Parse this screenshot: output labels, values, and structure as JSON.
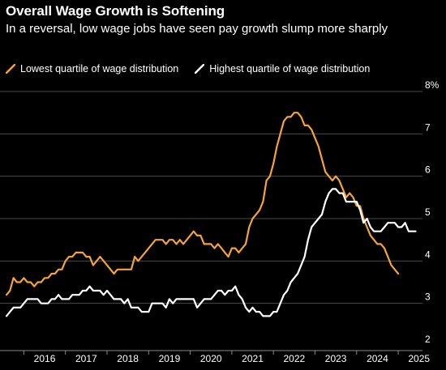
{
  "title": "Overall Wage Growth is Softening",
  "subtitle": "In a reversal, low wage jobs have seen pay growth slump more sharply",
  "chart_data": {
    "type": "line",
    "title": "Overall Wage Growth is Softening",
    "subtitle": "In a reversal, low wage jobs have seen pay growth slump more sharply",
    "xlabel": "",
    "ylabel": "",
    "y_unit": "%",
    "xlim": [
      "2015-08",
      "2025-08"
    ],
    "ylim": [
      2,
      8
    ],
    "y_ticks": [
      2,
      3,
      4,
      5,
      6,
      7,
      8
    ],
    "y_tick_labels": [
      "2",
      "3",
      "4",
      "5",
      "6",
      "7",
      "8%"
    ],
    "x_ticks": [
      "2016",
      "2017",
      "2018",
      "2019",
      "2020",
      "2021",
      "2022",
      "2023",
      "2024",
      "2025"
    ],
    "grid": true,
    "legend_position": "top-left",
    "series": [
      {
        "name": "Lowest quartile of wage distribution",
        "color": "#f5a33a",
        "points": [
          [
            "2015-08",
            3.2
          ],
          [
            "2015-09",
            3.3
          ],
          [
            "2015-10",
            3.6
          ],
          [
            "2015-11",
            3.5
          ],
          [
            "2015-12",
            3.5
          ],
          [
            "2016-01",
            3.6
          ],
          [
            "2016-02",
            3.5
          ],
          [
            "2016-03",
            3.5
          ],
          [
            "2016-04",
            3.4
          ],
          [
            "2016-05",
            3.5
          ],
          [
            "2016-06",
            3.5
          ],
          [
            "2016-07",
            3.6
          ],
          [
            "2016-08",
            3.6
          ],
          [
            "2016-09",
            3.7
          ],
          [
            "2016-10",
            3.7
          ],
          [
            "2016-11",
            3.8
          ],
          [
            "2016-12",
            3.8
          ],
          [
            "2017-01",
            4.0
          ],
          [
            "2017-02",
            4.1
          ],
          [
            "2017-03",
            4.1
          ],
          [
            "2017-04",
            4.2
          ],
          [
            "2017-05",
            4.2
          ],
          [
            "2017-06",
            4.2
          ],
          [
            "2017-07",
            4.1
          ],
          [
            "2017-08",
            4.1
          ],
          [
            "2017-09",
            3.9
          ],
          [
            "2017-10",
            4.0
          ],
          [
            "2017-11",
            4.1
          ],
          [
            "2017-12",
            4.0
          ],
          [
            "2018-01",
            3.9
          ],
          [
            "2018-02",
            3.8
          ],
          [
            "2018-03",
            3.7
          ],
          [
            "2018-04",
            3.8
          ],
          [
            "2018-05",
            3.8
          ],
          [
            "2018-06",
            3.8
          ],
          [
            "2018-07",
            3.8
          ],
          [
            "2018-08",
            3.8
          ],
          [
            "2018-09",
            4.1
          ],
          [
            "2018-10",
            4.0
          ],
          [
            "2018-11",
            4.1
          ],
          [
            "2018-12",
            4.2
          ],
          [
            "2019-01",
            4.3
          ],
          [
            "2019-02",
            4.4
          ],
          [
            "2019-03",
            4.5
          ],
          [
            "2019-04",
            4.5
          ],
          [
            "2019-05",
            4.5
          ],
          [
            "2019-06",
            4.4
          ],
          [
            "2019-07",
            4.5
          ],
          [
            "2019-08",
            4.5
          ],
          [
            "2019-09",
            4.4
          ],
          [
            "2019-10",
            4.5
          ],
          [
            "2019-11",
            4.4
          ],
          [
            "2019-12",
            4.5
          ],
          [
            "2020-01",
            4.6
          ],
          [
            "2020-02",
            4.7
          ],
          [
            "2020-03",
            4.6
          ],
          [
            "2020-04",
            4.6
          ],
          [
            "2020-05",
            4.4
          ],
          [
            "2020-06",
            4.4
          ],
          [
            "2020-07",
            4.4
          ],
          [
            "2020-08",
            4.3
          ],
          [
            "2020-09",
            4.4
          ],
          [
            "2020-10",
            4.3
          ],
          [
            "2020-11",
            4.2
          ],
          [
            "2020-12",
            4.1
          ],
          [
            "2021-01",
            4.3
          ],
          [
            "2021-02",
            4.3
          ],
          [
            "2021-03",
            4.2
          ],
          [
            "2021-04",
            4.3
          ],
          [
            "2021-05",
            4.4
          ],
          [
            "2021-06",
            4.8
          ],
          [
            "2021-07",
            5.0
          ],
          [
            "2021-08",
            5.1
          ],
          [
            "2021-09",
            5.2
          ],
          [
            "2021-10",
            5.4
          ],
          [
            "2021-11",
            5.9
          ],
          [
            "2021-12",
            6.0
          ],
          [
            "2022-01",
            6.3
          ],
          [
            "2022-02",
            6.7
          ],
          [
            "2022-03",
            7.0
          ],
          [
            "2022-04",
            7.3
          ],
          [
            "2022-05",
            7.4
          ],
          [
            "2022-06",
            7.4
          ],
          [
            "2022-07",
            7.5
          ],
          [
            "2022-08",
            7.5
          ],
          [
            "2022-09",
            7.4
          ],
          [
            "2022-10",
            7.2
          ],
          [
            "2022-11",
            7.2
          ],
          [
            "2022-12",
            7.1
          ],
          [
            "2023-01",
            6.9
          ],
          [
            "2023-02",
            6.7
          ],
          [
            "2023-03",
            6.4
          ],
          [
            "2023-04",
            6.1
          ],
          [
            "2023-05",
            6.0
          ],
          [
            "2023-06",
            5.9
          ],
          [
            "2023-07",
            6.0
          ],
          [
            "2023-08",
            5.9
          ],
          [
            "2023-09",
            5.7
          ],
          [
            "2023-10",
            5.5
          ],
          [
            "2023-11",
            5.6
          ],
          [
            "2023-12",
            5.5
          ],
          [
            "2024-01",
            5.3
          ],
          [
            "2024-02",
            5.3
          ],
          [
            "2024-03",
            5.0
          ],
          [
            "2024-04",
            4.8
          ],
          [
            "2024-05",
            4.6
          ],
          [
            "2024-06",
            4.5
          ],
          [
            "2024-07",
            4.4
          ],
          [
            "2024-08",
            4.4
          ],
          [
            "2024-09",
            4.3
          ],
          [
            "2024-10",
            4.1
          ],
          [
            "2024-11",
            3.9
          ],
          [
            "2024-12",
            3.8
          ],
          [
            "2025-01",
            3.7
          ]
        ]
      },
      {
        "name": "Highest quartile of wage distribution",
        "color": "#ffffff",
        "points": [
          [
            "2015-08",
            2.7
          ],
          [
            "2015-09",
            2.8
          ],
          [
            "2015-10",
            2.9
          ],
          [
            "2015-11",
            2.9
          ],
          [
            "2015-12",
            2.9
          ],
          [
            "2016-01",
            3.0
          ],
          [
            "2016-02",
            3.1
          ],
          [
            "2016-03",
            3.1
          ],
          [
            "2016-04",
            3.1
          ],
          [
            "2016-05",
            3.1
          ],
          [
            "2016-06",
            3.0
          ],
          [
            "2016-07",
            3.0
          ],
          [
            "2016-08",
            3.0
          ],
          [
            "2016-09",
            3.1
          ],
          [
            "2016-10",
            3.1
          ],
          [
            "2016-11",
            3.2
          ],
          [
            "2016-12",
            3.1
          ],
          [
            "2017-01",
            3.1
          ],
          [
            "2017-02",
            3.1
          ],
          [
            "2017-03",
            3.2
          ],
          [
            "2017-04",
            3.2
          ],
          [
            "2017-05",
            3.2
          ],
          [
            "2017-06",
            3.3
          ],
          [
            "2017-07",
            3.3
          ],
          [
            "2017-08",
            3.4
          ],
          [
            "2017-09",
            3.3
          ],
          [
            "2017-10",
            3.3
          ],
          [
            "2017-11",
            3.3
          ],
          [
            "2017-12",
            3.2
          ],
          [
            "2018-01",
            3.3
          ],
          [
            "2018-02",
            3.2
          ],
          [
            "2018-03",
            3.1
          ],
          [
            "2018-04",
            3.1
          ],
          [
            "2018-05",
            3.1
          ],
          [
            "2018-06",
            3.0
          ],
          [
            "2018-07",
            3.1
          ],
          [
            "2018-08",
            2.9
          ],
          [
            "2018-09",
            2.9
          ],
          [
            "2018-10",
            2.9
          ],
          [
            "2018-11",
            2.8
          ],
          [
            "2018-12",
            2.8
          ],
          [
            "2019-01",
            2.8
          ],
          [
            "2019-02",
            3.0
          ],
          [
            "2019-03",
            3.0
          ],
          [
            "2019-04",
            3.0
          ],
          [
            "2019-05",
            3.0
          ],
          [
            "2019-06",
            2.9
          ],
          [
            "2019-07",
            3.1
          ],
          [
            "2019-08",
            3.0
          ],
          [
            "2019-09",
            3.1
          ],
          [
            "2019-10",
            3.1
          ],
          [
            "2019-11",
            3.1
          ],
          [
            "2019-12",
            3.1
          ],
          [
            "2020-01",
            3.1
          ],
          [
            "2020-02",
            3.1
          ],
          [
            "2020-03",
            2.9
          ],
          [
            "2020-04",
            3.0
          ],
          [
            "2020-05",
            3.1
          ],
          [
            "2020-06",
            3.1
          ],
          [
            "2020-07",
            3.1
          ],
          [
            "2020-08",
            3.2
          ],
          [
            "2020-09",
            3.3
          ],
          [
            "2020-10",
            3.3
          ],
          [
            "2020-11",
            3.2
          ],
          [
            "2020-12",
            3.3
          ],
          [
            "2021-01",
            3.3
          ],
          [
            "2021-02",
            3.4
          ],
          [
            "2021-03",
            3.2
          ],
          [
            "2021-04",
            3.1
          ],
          [
            "2021-05",
            2.9
          ],
          [
            "2021-06",
            2.8
          ],
          [
            "2021-07",
            2.9
          ],
          [
            "2021-08",
            2.8
          ],
          [
            "2021-09",
            2.8
          ],
          [
            "2021-10",
            2.7
          ],
          [
            "2021-11",
            2.7
          ],
          [
            "2021-12",
            2.7
          ],
          [
            "2022-01",
            2.8
          ],
          [
            "2022-02",
            2.8
          ],
          [
            "2022-03",
            3.0
          ],
          [
            "2022-04",
            3.2
          ],
          [
            "2022-05",
            3.3
          ],
          [
            "2022-06",
            3.5
          ],
          [
            "2022-07",
            3.6
          ],
          [
            "2022-08",
            3.7
          ],
          [
            "2022-09",
            3.9
          ],
          [
            "2022-10",
            4.1
          ],
          [
            "2022-11",
            4.5
          ],
          [
            "2022-12",
            4.8
          ],
          [
            "2023-01",
            4.9
          ],
          [
            "2023-02",
            5.0
          ],
          [
            "2023-03",
            5.1
          ],
          [
            "2023-04",
            5.4
          ],
          [
            "2023-05",
            5.6
          ],
          [
            "2023-06",
            5.7
          ],
          [
            "2023-07",
            5.7
          ],
          [
            "2023-08",
            5.6
          ],
          [
            "2023-09",
            5.6
          ],
          [
            "2023-10",
            5.4
          ],
          [
            "2023-11",
            5.4
          ],
          [
            "2023-12",
            5.4
          ],
          [
            "2024-01",
            5.4
          ],
          [
            "2024-02",
            5.2
          ],
          [
            "2024-03",
            4.9
          ],
          [
            "2024-04",
            5.0
          ],
          [
            "2024-05",
            4.8
          ],
          [
            "2024-06",
            4.7
          ],
          [
            "2024-07",
            4.7
          ],
          [
            "2024-08",
            4.7
          ],
          [
            "2024-09",
            4.8
          ],
          [
            "2024-10",
            4.9
          ],
          [
            "2024-11",
            4.9
          ],
          [
            "2024-12",
            4.9
          ],
          [
            "2025-01",
            4.8
          ],
          [
            "2025-02",
            4.8
          ],
          [
            "2025-03",
            4.9
          ],
          [
            "2025-04",
            4.7
          ],
          [
            "2025-05",
            4.7
          ],
          [
            "2025-06",
            4.7
          ]
        ]
      }
    ]
  }
}
